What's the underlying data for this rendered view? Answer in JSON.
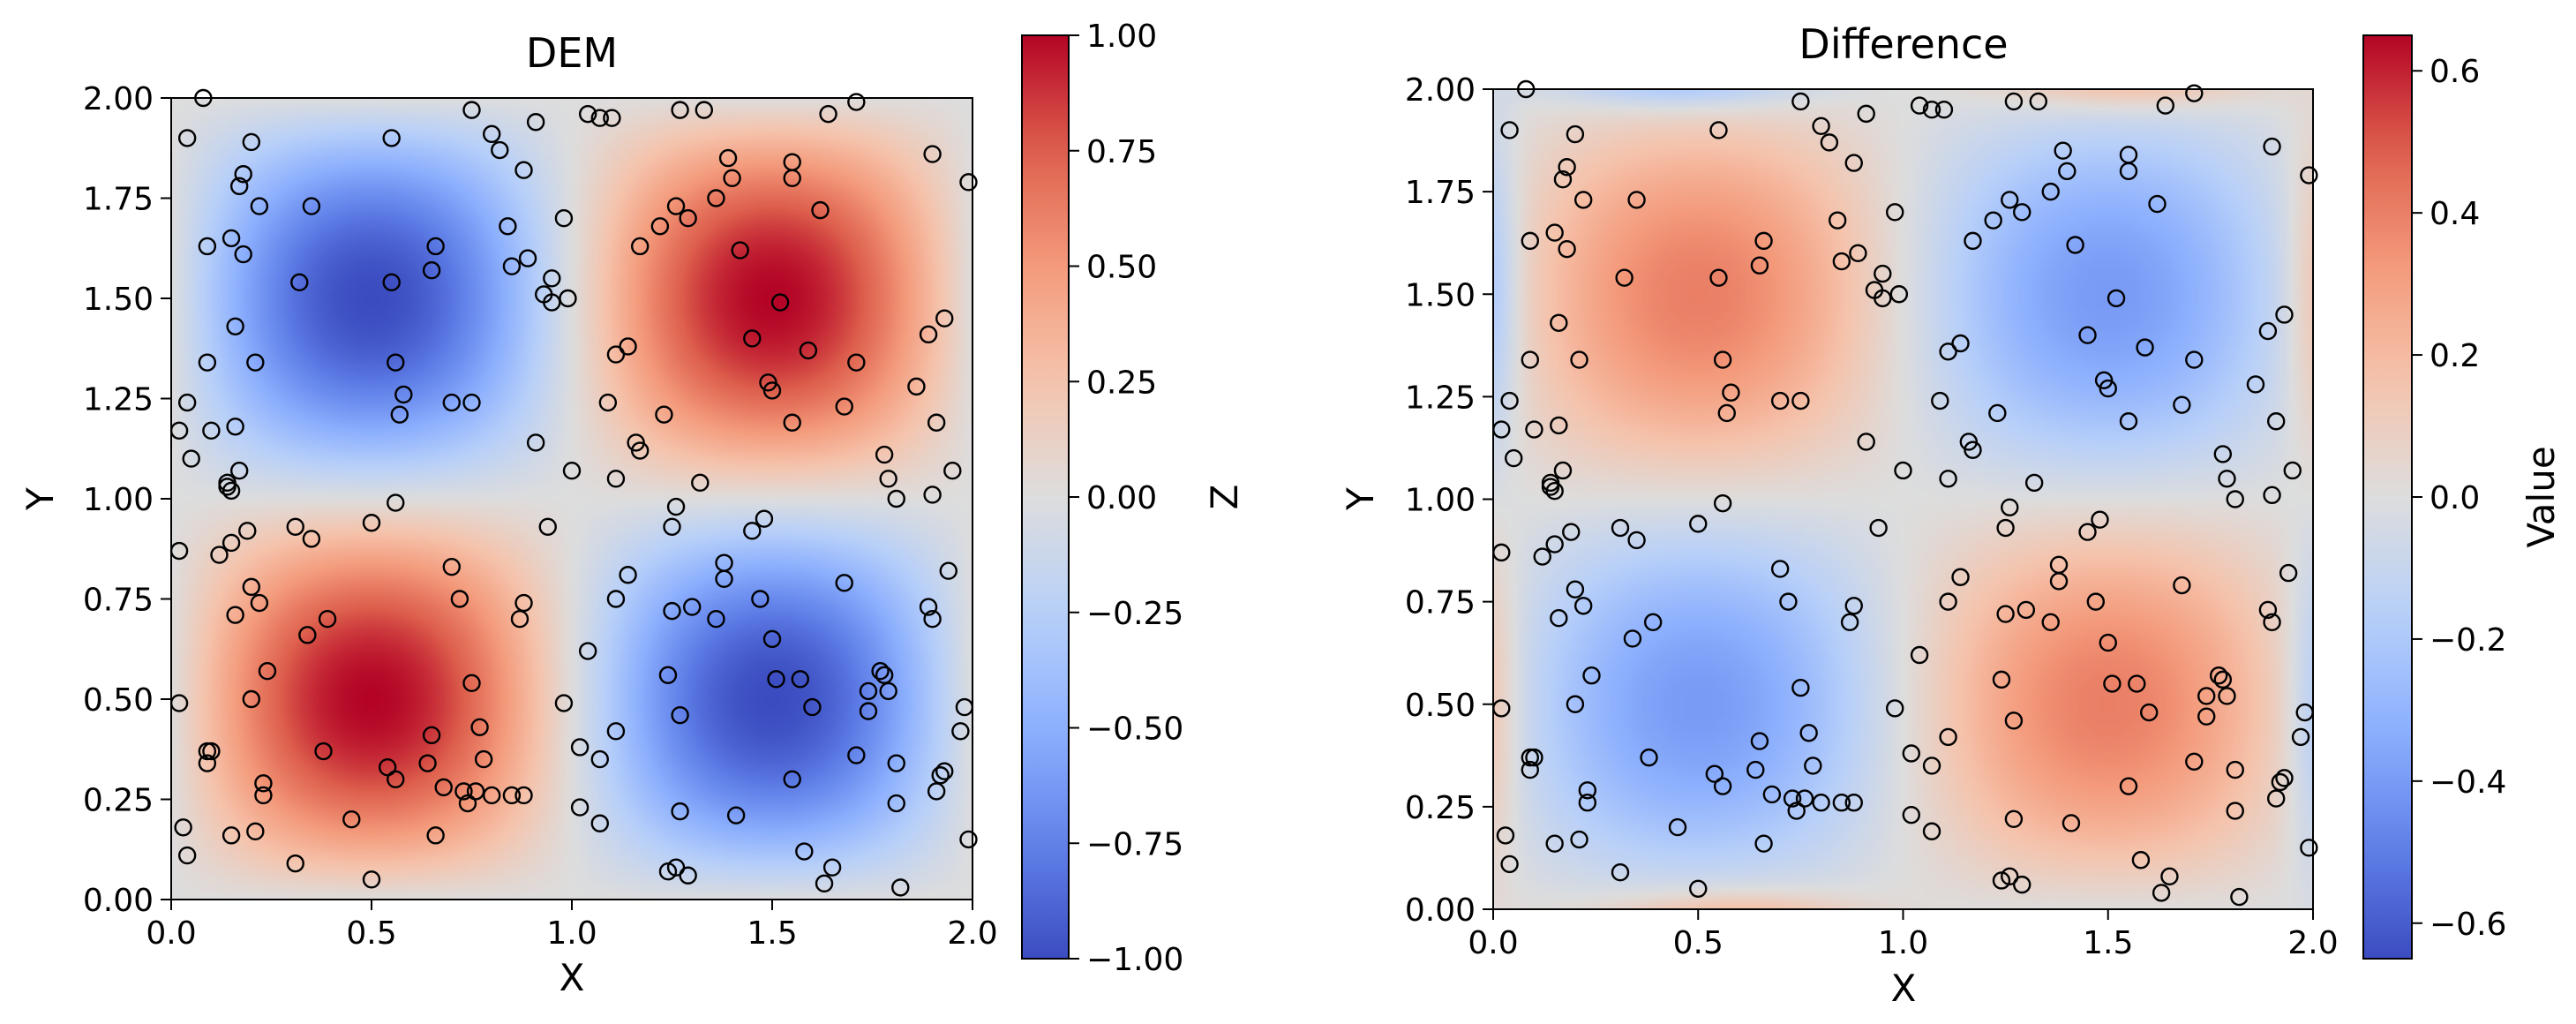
{
  "chart_data": [
    {
      "type": "heatmap",
      "title": "DEM",
      "xlabel": "X",
      "ylabel": "Y",
      "xlim": [
        0.0,
        2.0
      ],
      "ylim": [
        0.0,
        2.0
      ],
      "x_ticks": [
        "0.0",
        "0.5",
        "1.0",
        "1.5",
        "2.0"
      ],
      "y_ticks": [
        "0.00",
        "0.25",
        "0.50",
        "0.75",
        "1.00",
        "1.25",
        "1.50",
        "1.75",
        "2.00"
      ],
      "surface": "Z = sin(pi*X) * sin(pi*Y); negative top-left and bottom-right, positive top-right and bottom-left",
      "colormap": "coolwarm",
      "colorbar": {
        "label": "Z",
        "range": [
          -1.0,
          1.0
        ],
        "ticks": [
          "1.00",
          "0.75",
          "0.50",
          "0.25",
          "0.00",
          "−0.25",
          "−0.50",
          "−0.75",
          "−1.00"
        ]
      },
      "grid": false,
      "markers": "hollow black circles (sample points)"
    },
    {
      "type": "heatmap",
      "title": "Difference",
      "xlabel": "X",
      "ylabel": "Y",
      "xlim": [
        0.0,
        2.0
      ],
      "ylim": [
        0.0,
        2.0
      ],
      "x_ticks": [
        "0.0",
        "0.5",
        "1.0",
        "1.5",
        "2.0"
      ],
      "y_ticks": [
        "0.00",
        "0.25",
        "0.50",
        "0.75",
        "1.00",
        "1.25",
        "1.50",
        "1.75",
        "2.00"
      ],
      "surface": "Value ≈ -0.4 * sin(pi*X) * sin(pi*Y) with smaller blobs near edges",
      "colormap": "coolwarm",
      "colorbar": {
        "label": "Value",
        "range": [
          -0.65,
          0.65
        ],
        "ticks": [
          "0.6",
          "0.4",
          "0.2",
          "0.0",
          "−0.2",
          "−0.4",
          "−0.6"
        ]
      },
      "grid": false,
      "markers": "hollow black circles (same sample points)"
    }
  ],
  "sample_points": [
    [
      0.02,
      1.17
    ],
    [
      0.04,
      1.24
    ],
    [
      0.05,
      1.1
    ],
    [
      0.09,
      1.34
    ],
    [
      0.1,
      1.17
    ],
    [
      0.14,
      1.04
    ],
    [
      0.14,
      1.03
    ],
    [
      0.15,
      1.02
    ],
    [
      0.16,
      1.18
    ],
    [
      0.17,
      1.07
    ],
    [
      0.04,
      1.9
    ],
    [
      0.08,
      2.0
    ],
    [
      0.09,
      1.63
    ],
    [
      0.15,
      1.65
    ],
    [
      0.17,
      1.78
    ],
    [
      0.18,
      1.81
    ],
    [
      0.18,
      1.61
    ],
    [
      0.2,
      1.89
    ],
    [
      0.22,
      1.73
    ],
    [
      0.16,
      1.43
    ],
    [
      0.21,
      1.34
    ],
    [
      0.32,
      1.54
    ],
    [
      0.35,
      1.73
    ],
    [
      0.55,
      1.9
    ],
    [
      0.55,
      1.54
    ],
    [
      0.56,
      1.34
    ],
    [
      0.57,
      1.21
    ],
    [
      0.58,
      1.26
    ],
    [
      0.65,
      1.57
    ],
    [
      0.66,
      1.63
    ],
    [
      0.7,
      1.24
    ],
    [
      0.75,
      1.24
    ],
    [
      0.75,
      1.97
    ],
    [
      0.8,
      1.91
    ],
    [
      0.82,
      1.87
    ],
    [
      0.84,
      1.68
    ],
    [
      0.85,
      1.58
    ],
    [
      0.88,
      1.82
    ],
    [
      0.89,
      1.6
    ],
    [
      0.91,
      1.94
    ],
    [
      0.93,
      1.51
    ],
    [
      0.95,
      1.55
    ],
    [
      0.95,
      1.49
    ],
    [
      0.98,
      1.7
    ],
    [
      0.99,
      1.5
    ],
    [
      0.91,
      1.14
    ],
    [
      1.0,
      1.07
    ],
    [
      1.04,
      1.96
    ],
    [
      1.07,
      1.95
    ],
    [
      1.1,
      1.95
    ],
    [
      1.09,
      1.24
    ],
    [
      1.11,
      1.05
    ],
    [
      1.11,
      1.36
    ],
    [
      1.14,
      1.38
    ],
    [
      1.17,
      1.63
    ],
    [
      1.16,
      1.14
    ],
    [
      1.17,
      1.12
    ],
    [
      1.22,
      1.68
    ],
    [
      1.23,
      1.21
    ],
    [
      1.26,
      1.73
    ],
    [
      1.27,
      1.97
    ],
    [
      1.29,
      1.7
    ],
    [
      1.33,
      1.97
    ],
    [
      1.36,
      1.75
    ],
    [
      1.39,
      1.85
    ],
    [
      1.4,
      1.8
    ],
    [
      1.42,
      1.62
    ],
    [
      1.45,
      1.4
    ],
    [
      1.49,
      1.29
    ],
    [
      1.5,
      1.27
    ],
    [
      1.52,
      1.49
    ],
    [
      1.55,
      1.84
    ],
    [
      1.55,
      1.8
    ],
    [
      1.55,
      1.19
    ],
    [
      1.59,
      1.37
    ],
    [
      1.62,
      1.72
    ],
    [
      1.64,
      1.96
    ],
    [
      1.68,
      1.23
    ],
    [
      1.71,
      1.99
    ],
    [
      1.71,
      1.34
    ],
    [
      1.78,
      1.11
    ],
    [
      1.79,
      1.05
    ],
    [
      1.81,
      1.0
    ],
    [
      1.86,
      1.28
    ],
    [
      1.89,
      1.41
    ],
    [
      1.9,
      1.86
    ],
    [
      1.91,
      1.19
    ],
    [
      1.93,
      1.45
    ],
    [
      1.95,
      1.07
    ],
    [
      1.99,
      1.79
    ],
    [
      1.9,
      1.01
    ],
    [
      0.02,
      0.49
    ],
    [
      0.03,
      0.18
    ],
    [
      0.04,
      0.11
    ],
    [
      0.02,
      0.87
    ],
    [
      0.09,
      0.37
    ],
    [
      0.09,
      0.34
    ],
    [
      0.1,
      0.37
    ],
    [
      0.12,
      0.86
    ],
    [
      0.15,
      0.16
    ],
    [
      0.15,
      0.89
    ],
    [
      0.16,
      0.71
    ],
    [
      0.19,
      0.92
    ],
    [
      0.2,
      0.78
    ],
    [
      0.2,
      0.5
    ],
    [
      0.21,
      0.17
    ],
    [
      0.22,
      0.74
    ],
    [
      0.23,
      0.26
    ],
    [
      0.23,
      0.29
    ],
    [
      0.24,
      0.57
    ],
    [
      0.31,
      0.09
    ],
    [
      0.31,
      0.93
    ],
    [
      0.34,
      0.66
    ],
    [
      0.35,
      0.9
    ],
    [
      0.38,
      0.37
    ],
    [
      0.39,
      0.7
    ],
    [
      0.45,
      0.2
    ],
    [
      0.5,
      0.05
    ],
    [
      0.5,
      0.94
    ],
    [
      0.54,
      0.33
    ],
    [
      0.56,
      0.3
    ],
    [
      0.56,
      0.99
    ],
    [
      0.64,
      0.34
    ],
    [
      0.65,
      0.41
    ],
    [
      0.66,
      0.16
    ],
    [
      0.68,
      0.28
    ],
    [
      0.7,
      0.83
    ],
    [
      0.72,
      0.75
    ],
    [
      0.73,
      0.27
    ],
    [
      0.74,
      0.24
    ],
    [
      0.75,
      0.54
    ],
    [
      0.76,
      0.27
    ],
    [
      0.77,
      0.43
    ],
    [
      0.78,
      0.35
    ],
    [
      0.8,
      0.26
    ],
    [
      0.85,
      0.26
    ],
    [
      0.87,
      0.7
    ],
    [
      0.88,
      0.26
    ],
    [
      0.88,
      0.74
    ],
    [
      0.94,
      0.93
    ],
    [
      0.98,
      0.49
    ],
    [
      1.02,
      0.38
    ],
    [
      1.02,
      0.23
    ],
    [
      1.04,
      0.62
    ],
    [
      1.07,
      0.35
    ],
    [
      1.07,
      0.19
    ],
    [
      1.11,
      0.75
    ],
    [
      1.11,
      0.42
    ],
    [
      1.14,
      0.81
    ],
    [
      1.24,
      0.56
    ],
    [
      1.24,
      0.07
    ],
    [
      1.25,
      0.72
    ],
    [
      1.25,
      0.93
    ],
    [
      1.26,
      0.98
    ],
    [
      1.26,
      0.08
    ],
    [
      1.27,
      0.22
    ],
    [
      1.27,
      0.46
    ],
    [
      1.29,
      0.06
    ],
    [
      1.3,
      0.73
    ],
    [
      1.32,
      1.04
    ],
    [
      1.36,
      0.7
    ],
    [
      1.38,
      0.84
    ],
    [
      1.38,
      0.8
    ],
    [
      1.41,
      0.21
    ],
    [
      1.45,
      0.92
    ],
    [
      1.47,
      0.75
    ],
    [
      1.48,
      0.95
    ],
    [
      1.5,
      0.65
    ],
    [
      1.51,
      0.55
    ],
    [
      1.55,
      0.3
    ],
    [
      1.57,
      0.55
    ],
    [
      1.58,
      0.12
    ],
    [
      1.6,
      0.48
    ],
    [
      1.63,
      0.04
    ],
    [
      1.65,
      0.08
    ],
    [
      1.68,
      0.79
    ],
    [
      1.71,
      0.36
    ],
    [
      1.74,
      0.47
    ],
    [
      1.74,
      0.52
    ],
    [
      1.77,
      0.57
    ],
    [
      1.78,
      0.56
    ],
    [
      1.79,
      0.52
    ],
    [
      1.81,
      0.34
    ],
    [
      1.81,
      0.24
    ],
    [
      1.82,
      0.03
    ],
    [
      1.89,
      0.73
    ],
    [
      1.9,
      0.7
    ],
    [
      1.91,
      0.27
    ],
    [
      1.92,
      0.31
    ],
    [
      1.93,
      0.32
    ],
    [
      1.94,
      0.82
    ],
    [
      1.97,
      0.42
    ],
    [
      1.98,
      0.48
    ],
    [
      1.99,
      0.15
    ]
  ]
}
